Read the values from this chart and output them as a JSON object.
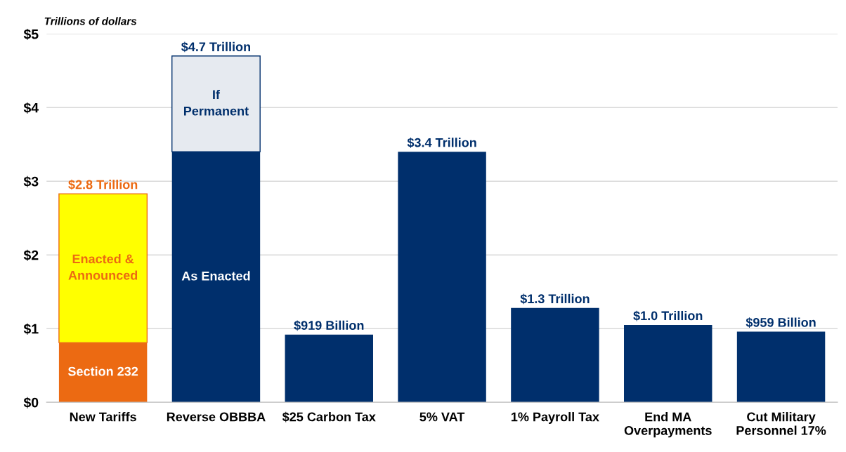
{
  "chart_data": {
    "type": "bar",
    "stacked": true,
    "ylabel": "Trillions of dollars",
    "categories": [
      "New Tariffs",
      "Reverse OBBBA",
      "$25 Carbon Tax",
      "5% VAT",
      "1% Payroll Tax",
      "End MA\nOverpayments",
      "Cut Military\nPersonnel 17%"
    ],
    "series": [
      {
        "colors": [
          "#ec6a12",
          "#002f6c",
          "#002f6c",
          "#002f6c",
          "#002f6c",
          "#002f6c",
          "#002f6c"
        ],
        "values": [
          0.81,
          3.4,
          0.919,
          3.4,
          1.28,
          1.05,
          0.959
        ]
      },
      {
        "colors": [
          "#ffff00",
          "#e6eaf0",
          null,
          null,
          null,
          null,
          null
        ],
        "values": [
          2.02,
          1.3,
          null,
          null,
          null,
          null,
          null
        ]
      }
    ],
    "totals": [
      "$2.8 Trillion",
      "$4.7 Trillion",
      "$919 Billion",
      "$3.4 Trillion",
      "$1.3 Trillion",
      "$1.0 Trillion",
      "$959 Billion"
    ],
    "annotations": [
      "Section 232",
      "Enacted &\nAnnounced",
      "As Enacted",
      "If\nPermanent"
    ],
    "ylim": [
      0,
      5
    ],
    "yticks": [
      {
        "value": 0,
        "label": "$0"
      },
      {
        "value": 1,
        "label": "$1"
      },
      {
        "value": 2,
        "label": "$2"
      },
      {
        "value": 3,
        "label": "$3"
      },
      {
        "value": 4,
        "label": "$4"
      },
      {
        "value": 5,
        "label": "$5"
      }
    ],
    "grid": "y"
  }
}
